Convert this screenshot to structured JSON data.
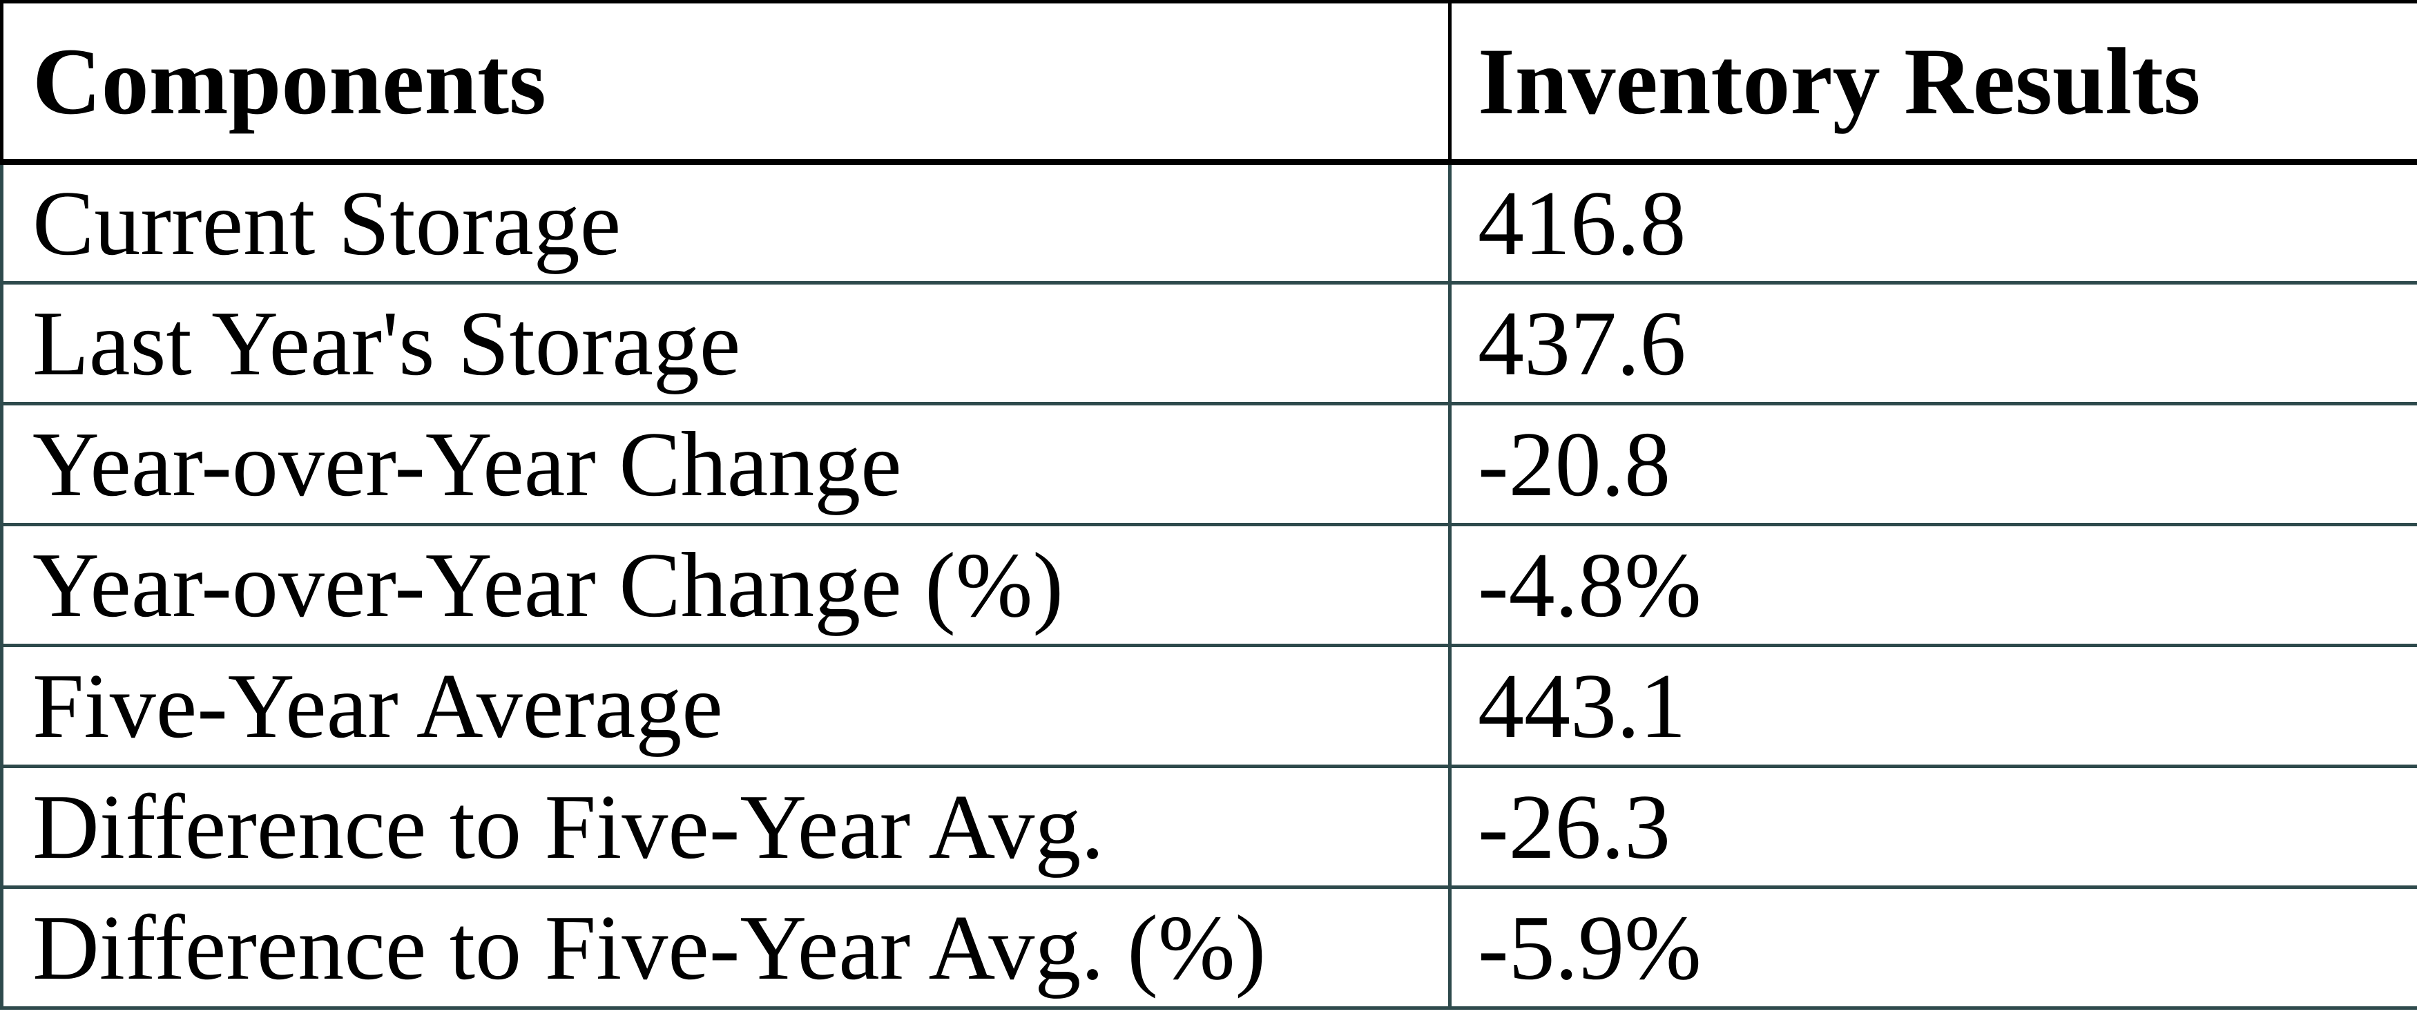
{
  "table": {
    "header": {
      "components": "Components",
      "inventory_results": "Inventory Results"
    },
    "rows": [
      {
        "component": "Current Storage",
        "result": "416.8"
      },
      {
        "component": "Last Year's Storage",
        "result": "437.6"
      },
      {
        "component": "Year-over-Year Change",
        "result": "-20.8"
      },
      {
        "component": "Year-over-Year Change (%)",
        "result": "-4.8%"
      },
      {
        "component": "Five-Year Average",
        "result": "443.1"
      },
      {
        "component": "Difference to Five-Year Avg.",
        "result": "-26.3"
      },
      {
        "component": "Difference to Five-Year Avg. (%)",
        "result": "-5.9%"
      }
    ],
    "colors": {
      "header_border": "#000000",
      "body_border": "#2E4A4C",
      "text": "#000000",
      "background": "#FFFFFF"
    }
  },
  "chart_data": {
    "type": "table",
    "title": "",
    "columns": [
      "Components",
      "Inventory Results"
    ],
    "rows": [
      [
        "Current Storage",
        416.8
      ],
      [
        "Last Year's Storage",
        437.6
      ],
      [
        "Year-over-Year Change",
        -20.8
      ],
      [
        "Year-over-Year Change (%)",
        "-4.8%"
      ],
      [
        "Five-Year Average",
        443.1
      ],
      [
        "Difference to Five-Year Avg.",
        -26.3
      ],
      [
        "Difference to Five-Year Avg. (%)",
        "-5.9%"
      ]
    ]
  }
}
